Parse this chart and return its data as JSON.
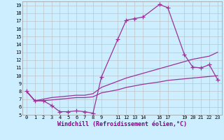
{
  "xlabel": "Windchill (Refroidissement éolien,°C)",
  "background_color": "#cceeff",
  "line_color": "#993399",
  "grid_color": "#bbbbbb",
  "ylim": [
    5,
    19.5
  ],
  "xlim": [
    -0.5,
    23.5
  ],
  "yticks": [
    5,
    6,
    7,
    8,
    9,
    10,
    11,
    12,
    13,
    14,
    15,
    16,
    17,
    18,
    19
  ],
  "xticks": [
    0,
    1,
    2,
    3,
    4,
    5,
    6,
    7,
    8,
    9,
    11,
    12,
    13,
    14,
    16,
    17,
    19,
    20,
    21,
    22,
    23
  ],
  "line1_x": [
    0,
    1,
    2,
    3,
    4,
    5,
    6,
    7,
    8,
    9,
    11,
    12,
    13,
    14,
    16,
    17,
    19,
    20,
    21,
    22,
    23
  ],
  "line1_y": [
    8.0,
    6.8,
    6.8,
    6.2,
    5.4,
    5.4,
    5.5,
    5.4,
    5.2,
    9.8,
    14.7,
    17.1,
    17.3,
    17.5,
    19.1,
    18.7,
    12.7,
    11.1,
    11.0,
    11.4,
    9.5
  ],
  "line2_x": [
    0,
    1,
    2,
    3,
    4,
    5,
    6,
    7,
    8,
    9,
    11,
    12,
    13,
    14,
    16,
    17,
    19,
    20,
    21,
    22,
    23
  ],
  "line2_y": [
    8.0,
    6.8,
    7.0,
    7.2,
    7.3,
    7.4,
    7.5,
    7.5,
    7.7,
    8.5,
    9.3,
    9.7,
    10.0,
    10.3,
    10.9,
    11.2,
    11.8,
    12.1,
    12.3,
    12.5,
    13.0
  ],
  "line3_x": [
    0,
    1,
    2,
    3,
    4,
    5,
    6,
    7,
    8,
    9,
    11,
    12,
    13,
    14,
    16,
    17,
    19,
    20,
    21,
    22,
    23
  ],
  "line3_y": [
    8.0,
    6.8,
    6.8,
    6.9,
    7.0,
    7.1,
    7.2,
    7.2,
    7.3,
    7.8,
    8.2,
    8.5,
    8.7,
    8.9,
    9.2,
    9.4,
    9.6,
    9.7,
    9.8,
    9.9,
    10.0
  ]
}
